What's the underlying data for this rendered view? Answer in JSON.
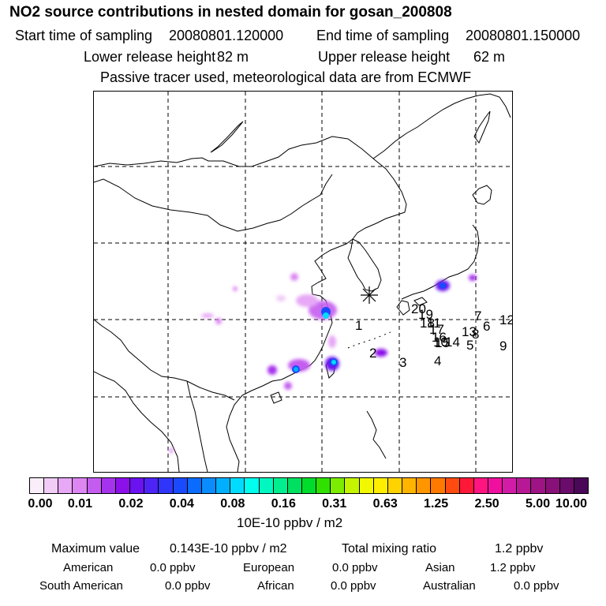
{
  "header": {
    "title": "NO2 source contributions in nested domain for gosan_200808",
    "start_label": "Start time of sampling",
    "start_value": "20080801.120000",
    "end_label": "End time of sampling",
    "end_value": "20080801.150000",
    "lower_label": "Lower release height",
    "lower_value": "82 m",
    "upper_label": "Upper release height",
    "upper_value": "62 m",
    "note": "Passive tracer used, meteorological data are from ECMWF"
  },
  "map": {
    "receptor_marker": "star-marker",
    "point_labels": [
      "1",
      "2",
      "3",
      "4",
      "5",
      "6",
      "7",
      "8",
      "9",
      "10",
      "11",
      "12",
      "13",
      "14",
      "15",
      "16",
      "17",
      "18",
      "19",
      "20"
    ]
  },
  "colorbar": {
    "ticks": [
      "0.00",
      "0.01",
      "0.02",
      "0.04",
      "0.08",
      "0.16",
      "0.31",
      "0.63",
      "1.25",
      "2.50",
      "5.00",
      "10.00"
    ],
    "colors": [
      "#fbeefb",
      "#f1ccf7",
      "#e7a8f5",
      "#dc85f3",
      "#c55cf0",
      "#a633ec",
      "#8c10ea",
      "#6a12f0",
      "#4d24f5",
      "#2f36fa",
      "#1a4afd",
      "#0a6bff",
      "#0a8cff",
      "#00b0ff",
      "#00dcff",
      "#00ffee",
      "#00f8c0",
      "#00ee8e",
      "#00e060",
      "#00dc2c",
      "#30e000",
      "#7cec00",
      "#c4f400",
      "#f2f800",
      "#ffee00",
      "#ffd200",
      "#ffb400",
      "#ff9600",
      "#ff7800",
      "#ff4a10",
      "#ff1838",
      "#ff1480",
      "#f010a0",
      "#d21ca8",
      "#b81896",
      "#9e1484",
      "#881078",
      "#6a0c6a",
      "#4a0858"
    ],
    "units": "10E-10 ppbv / m2"
  },
  "stats": {
    "max_label": "Maximum value",
    "max_value": "0.143E-10 ppbv / m2",
    "total_label": "Total mixing ratio",
    "total_value": "1.2 ppbv",
    "regions": [
      {
        "name": "American",
        "value": "0.0 ppbv"
      },
      {
        "name": "European",
        "value": "0.0 ppbv"
      },
      {
        "name": "Asian",
        "value": "1.2 ppbv"
      },
      {
        "name": "South American",
        "value": "0.0 ppbv"
      },
      {
        "name": "African",
        "value": "0.0 ppbv"
      },
      {
        "name": "Australian",
        "value": "0.0 ppbv"
      }
    ]
  }
}
